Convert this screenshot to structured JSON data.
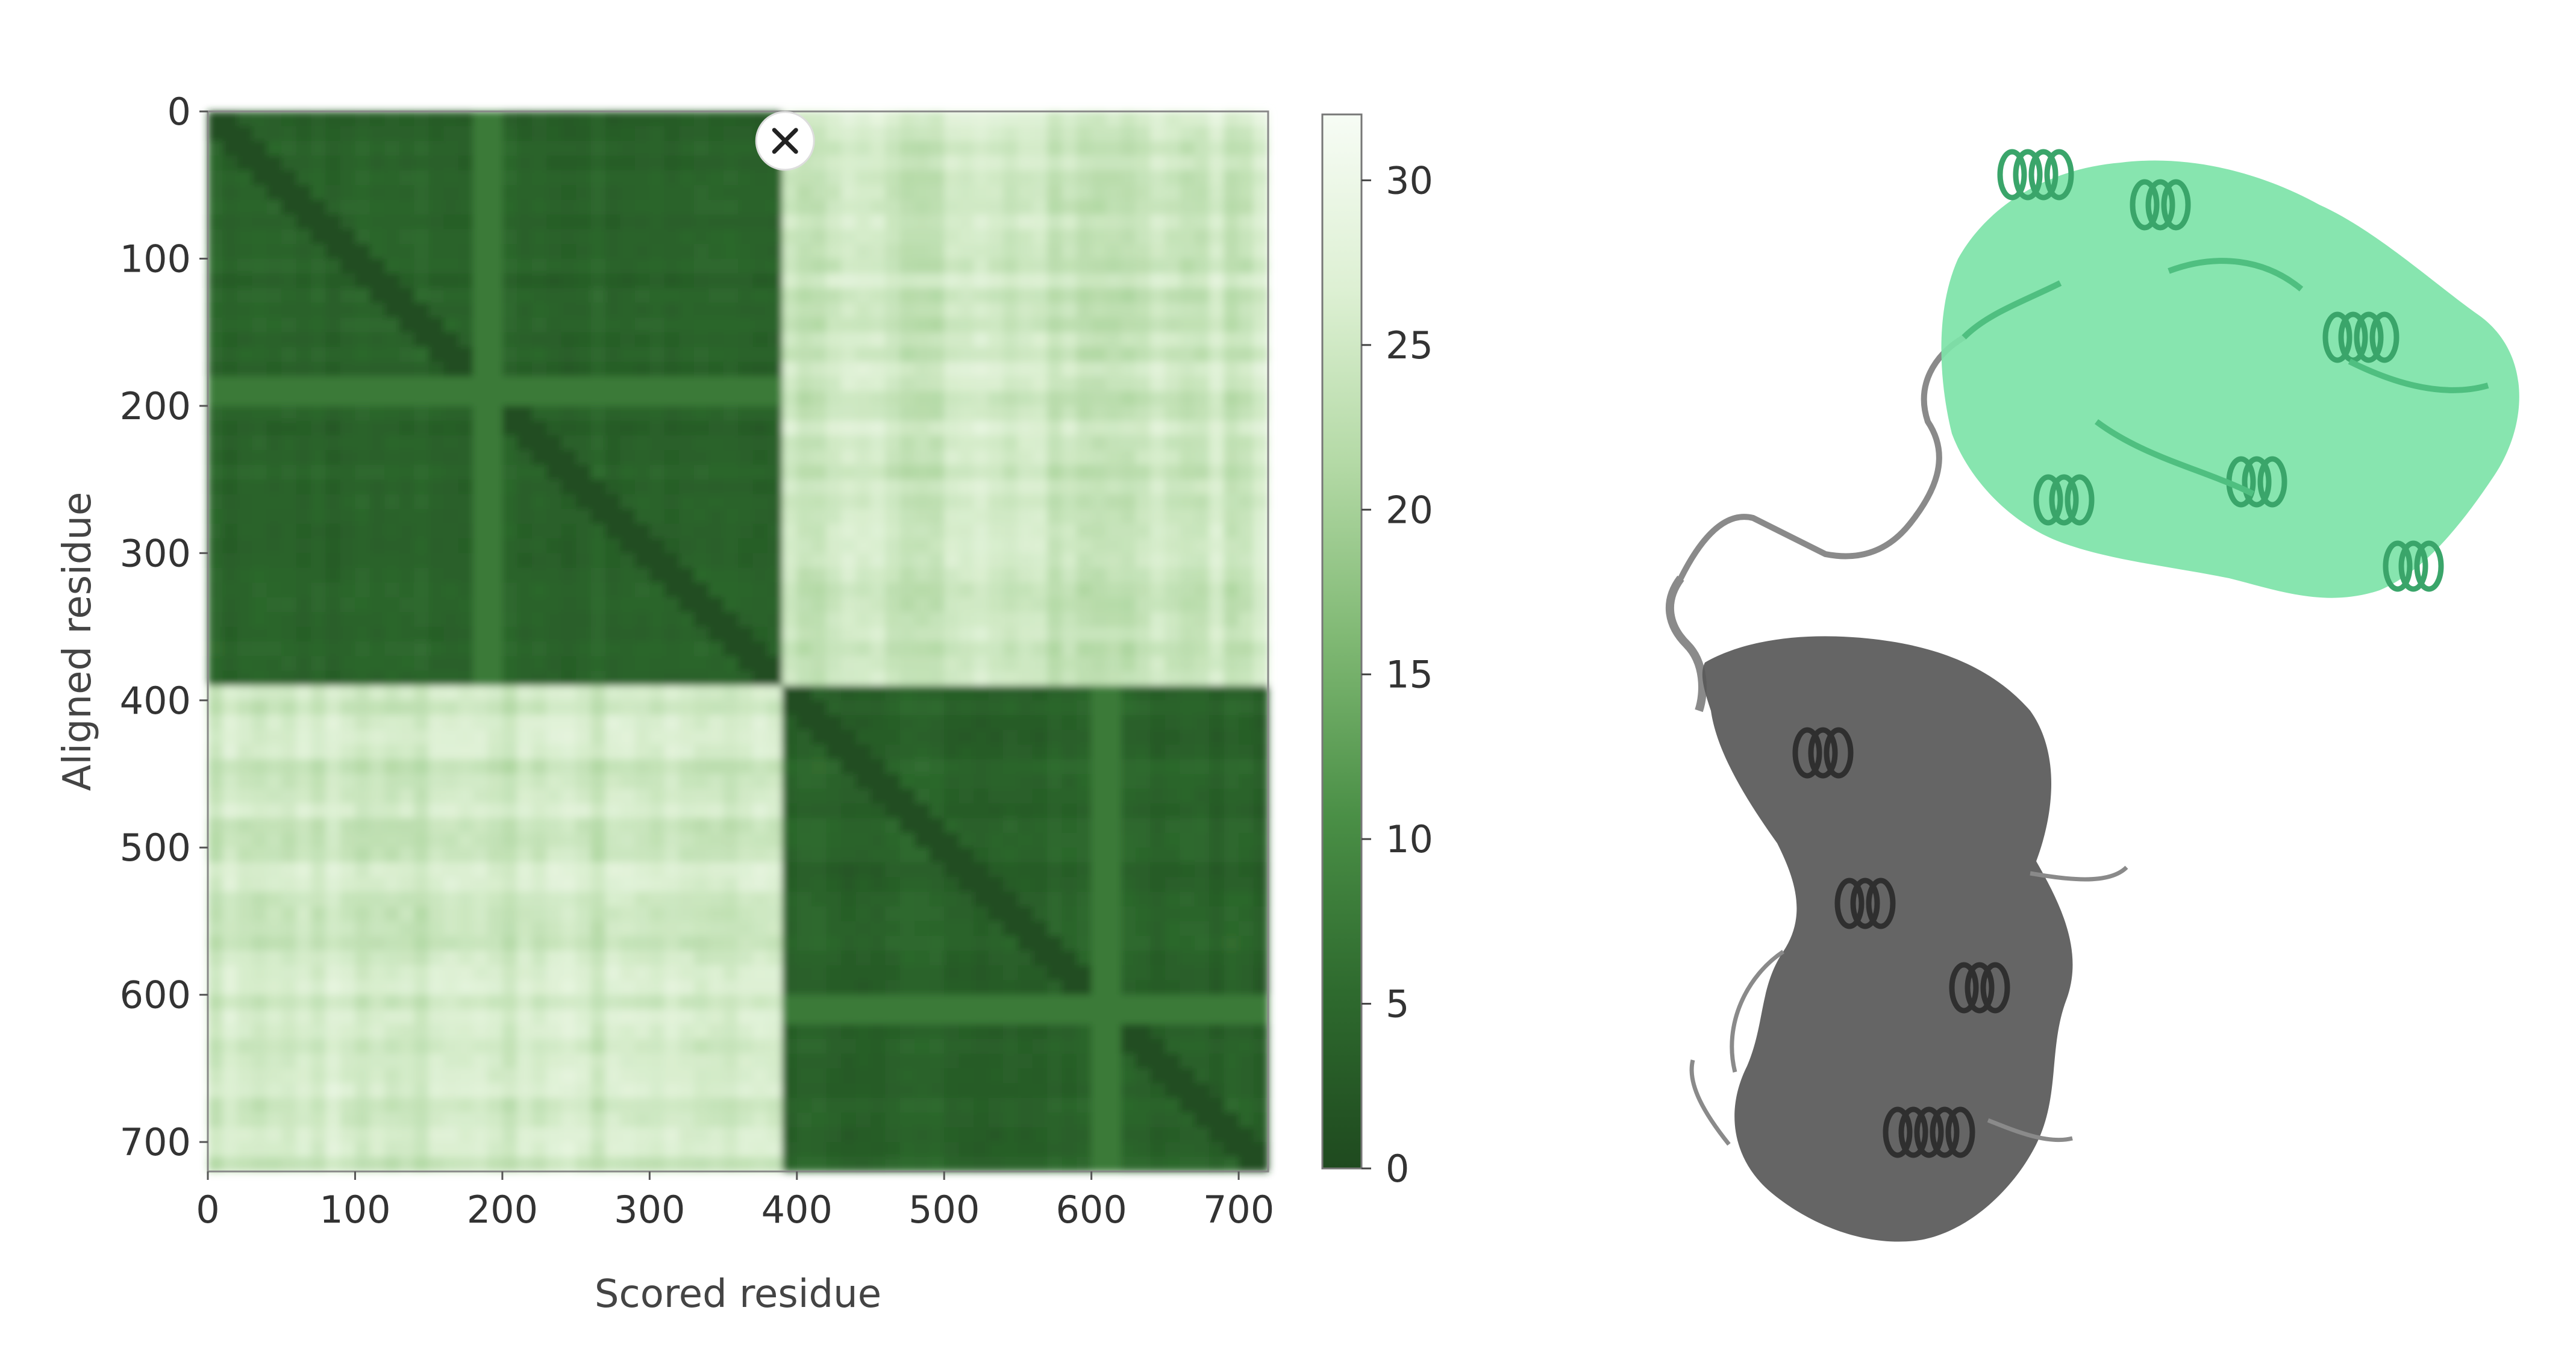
{
  "chart_data": {
    "type": "heatmap",
    "title": "",
    "xlabel": "Scored residue",
    "ylabel": "Aligned residue",
    "xlim": [
      0,
      720
    ],
    "ylim": [
      0,
      720
    ],
    "y_inverted": true,
    "x_ticks": [
      0,
      100,
      200,
      300,
      400,
      500,
      600,
      700
    ],
    "y_ticks": [
      0,
      100,
      200,
      300,
      400,
      500,
      600,
      700
    ],
    "domains": [
      {
        "range": [
          0,
          390
        ],
        "low_value": 2
      },
      {
        "range": [
          390,
          720
        ],
        "low_value": 2
      }
    ],
    "inter_domain_value": 29,
    "stripes": [
      {
        "axis": "both",
        "at": 190,
        "value": 14
      },
      {
        "axis": "both",
        "at": 610,
        "value": 14
      }
    ],
    "colorbar": {
      "min": 0,
      "max": 32,
      "ticks": [
        0,
        5,
        10,
        15,
        20,
        25,
        30
      ],
      "low_color": "#1f4a1f",
      "high_color": "#f7fcf5",
      "colors": [
        "#1f4a1f",
        "#2e6a2e",
        "#4a8f46",
        "#7fb873",
        "#b3d9a5",
        "#ddf0d3",
        "#f7fcf5"
      ]
    },
    "marker": {
      "type": "close-icon",
      "x": 392,
      "y": 20
    }
  },
  "structure": {
    "domain_a_color": "#7de3a8",
    "domain_b_color": "#585858",
    "linker_color": "#8a8a8a"
  }
}
